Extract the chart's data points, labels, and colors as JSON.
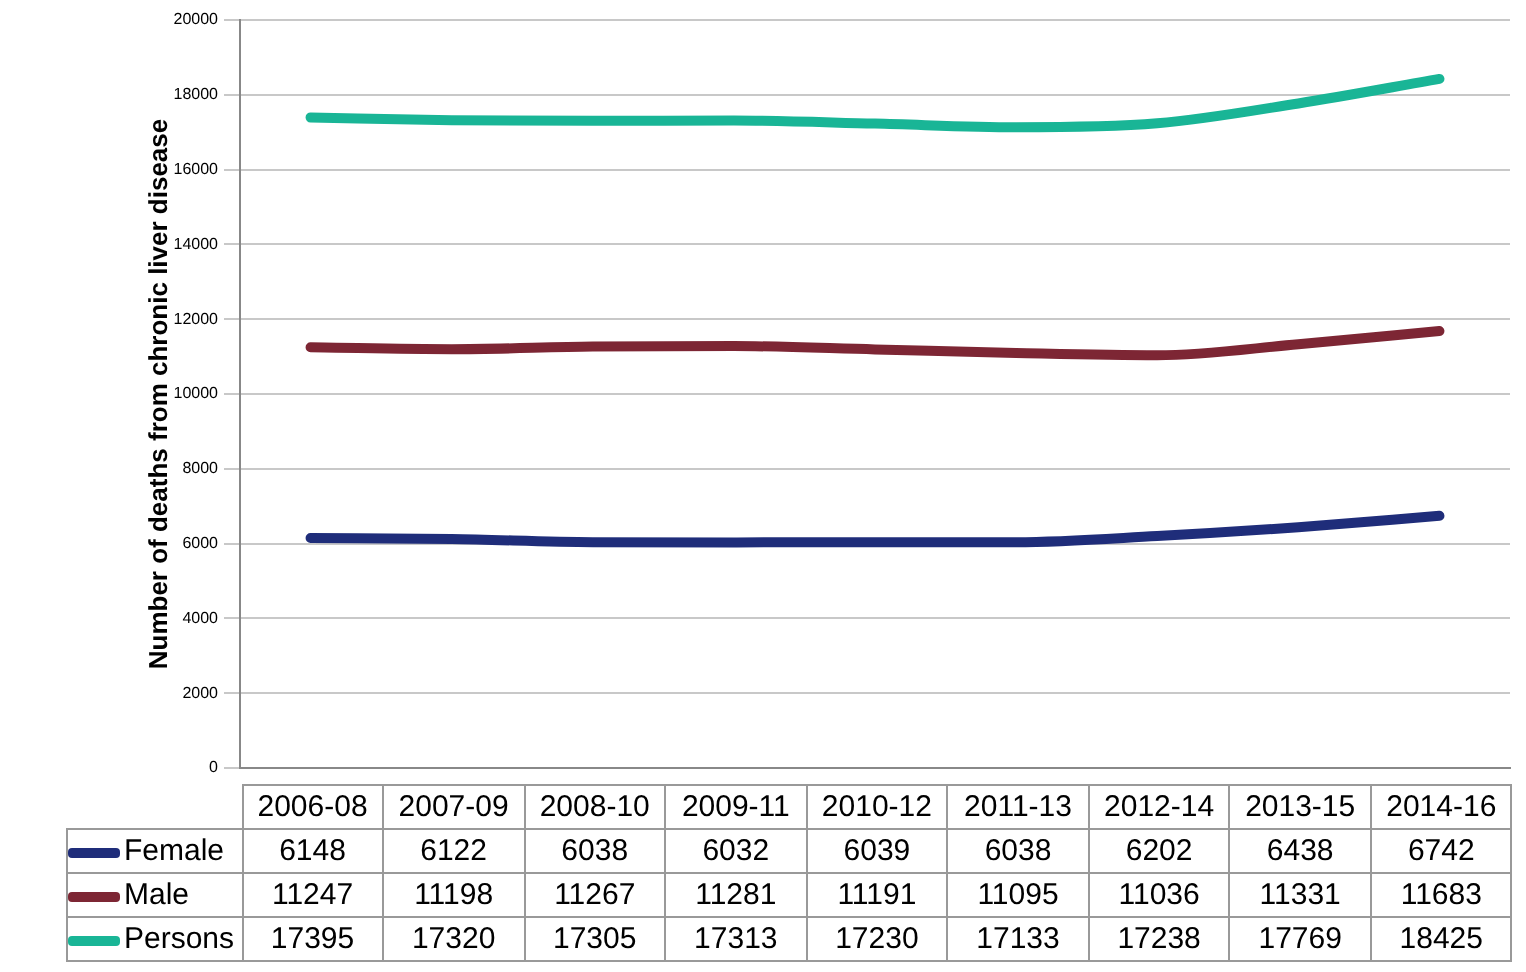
{
  "chart_data": {
    "type": "line",
    "ylabel": "Number of deaths from chronic liver disease",
    "categories": [
      "2006-08",
      "2007-09",
      "2008-10",
      "2009-11",
      "2010-12",
      "2011-13",
      "2012-14",
      "2013-15",
      "2014-16"
    ],
    "series": [
      {
        "name": "Female",
        "color": "#1f2d7a",
        "values": [
          6148,
          6122,
          6038,
          6032,
          6039,
          6038,
          6202,
          6438,
          6742
        ]
      },
      {
        "name": "Male",
        "color": "#7d2634",
        "values": [
          11247,
          11198,
          11267,
          11281,
          11191,
          11095,
          11036,
          11331,
          11683
        ]
      },
      {
        "name": "Persons",
        "color": "#19b596",
        "values": [
          17395,
          17320,
          17305,
          17313,
          17230,
          17133,
          17238,
          17769,
          18425
        ]
      }
    ],
    "ylim": [
      0,
      20000
    ],
    "yticks": [
      0,
      2000,
      4000,
      6000,
      8000,
      10000,
      12000,
      14000,
      16000,
      18000,
      20000
    ],
    "grid": "y",
    "legend": "bottom",
    "data_labels": true,
    "marker": "none",
    "line_style": "solid"
  }
}
